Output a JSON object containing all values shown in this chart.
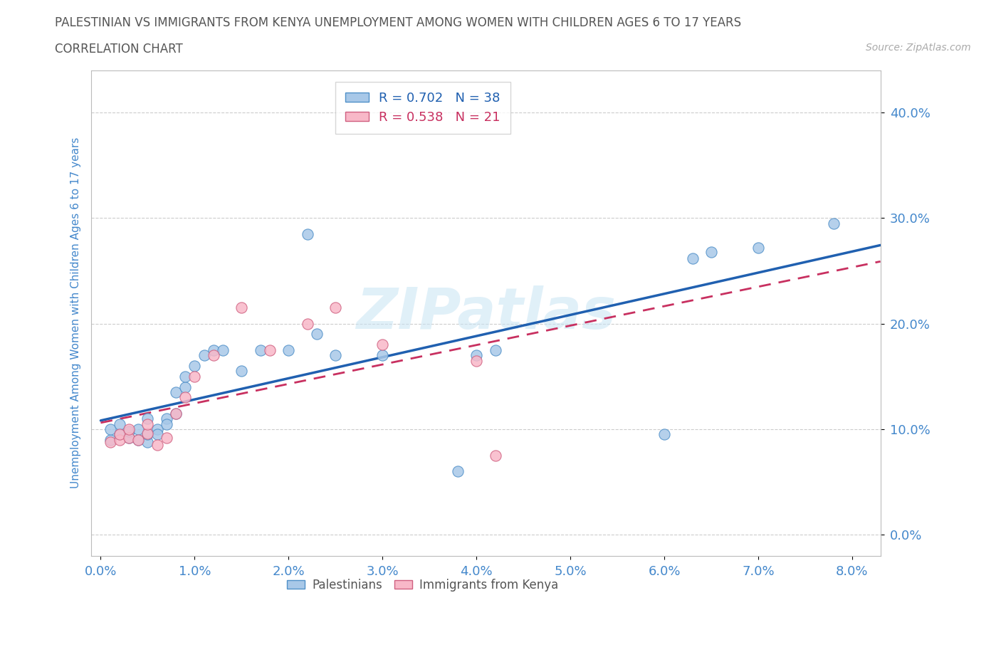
{
  "title_line1": "PALESTINIAN VS IMMIGRANTS FROM KENYA UNEMPLOYMENT AMONG WOMEN WITH CHILDREN AGES 6 TO 17 YEARS",
  "title_line2": "CORRELATION CHART",
  "source": "Source: ZipAtlas.com",
  "xlim": [
    -0.001,
    0.083
  ],
  "ylim": [
    -0.02,
    0.44
  ],
  "xlabel_ticks": [
    0.0,
    0.01,
    0.02,
    0.03,
    0.04,
    0.05,
    0.06,
    0.07,
    0.08
  ],
  "ylabel_ticks": [
    0.0,
    0.1,
    0.2,
    0.3,
    0.4
  ],
  "ylabel": "Unemployment Among Women with Children Ages 6 to 17 years",
  "palestinians": {
    "x": [
      0.001,
      0.001,
      0.002,
      0.002,
      0.003,
      0.003,
      0.004,
      0.004,
      0.005,
      0.005,
      0.005,
      0.006,
      0.006,
      0.007,
      0.007,
      0.008,
      0.008,
      0.009,
      0.009,
      0.01,
      0.011,
      0.012,
      0.013,
      0.015,
      0.017,
      0.02,
      0.022,
      0.023,
      0.025,
      0.03,
      0.038,
      0.04,
      0.042,
      0.06,
      0.063,
      0.065,
      0.07,
      0.078
    ],
    "y": [
      0.09,
      0.1,
      0.095,
      0.105,
      0.092,
      0.098,
      0.09,
      0.1,
      0.088,
      0.095,
      0.11,
      0.1,
      0.095,
      0.11,
      0.105,
      0.115,
      0.135,
      0.14,
      0.15,
      0.16,
      0.17,
      0.175,
      0.175,
      0.155,
      0.175,
      0.175,
      0.285,
      0.19,
      0.17,
      0.17,
      0.06,
      0.17,
      0.175,
      0.095,
      0.262,
      0.268,
      0.272,
      0.295
    ],
    "color": "#a8c8e8",
    "edge_color": "#5090c8",
    "trend_color": "#2060b0",
    "R": 0.702,
    "N": 38
  },
  "kenya": {
    "x": [
      0.001,
      0.002,
      0.002,
      0.003,
      0.003,
      0.004,
      0.005,
      0.005,
      0.006,
      0.007,
      0.008,
      0.009,
      0.01,
      0.012,
      0.015,
      0.018,
      0.022,
      0.025,
      0.03,
      0.04,
      0.042
    ],
    "y": [
      0.088,
      0.09,
      0.095,
      0.092,
      0.1,
      0.09,
      0.096,
      0.105,
      0.085,
      0.092,
      0.115,
      0.13,
      0.15,
      0.17,
      0.215,
      0.175,
      0.2,
      0.215,
      0.18,
      0.165,
      0.075
    ],
    "color": "#f8b8c8",
    "edge_color": "#d06080",
    "trend_color": "#c83060",
    "R": 0.538,
    "N": 21
  },
  "background_color": "#ffffff",
  "grid_color": "#cccccc",
  "watermark": "ZIPatlas",
  "title_color": "#555555",
  "tick_label_color": "#4488cc",
  "axis_label_color": "#4488cc"
}
